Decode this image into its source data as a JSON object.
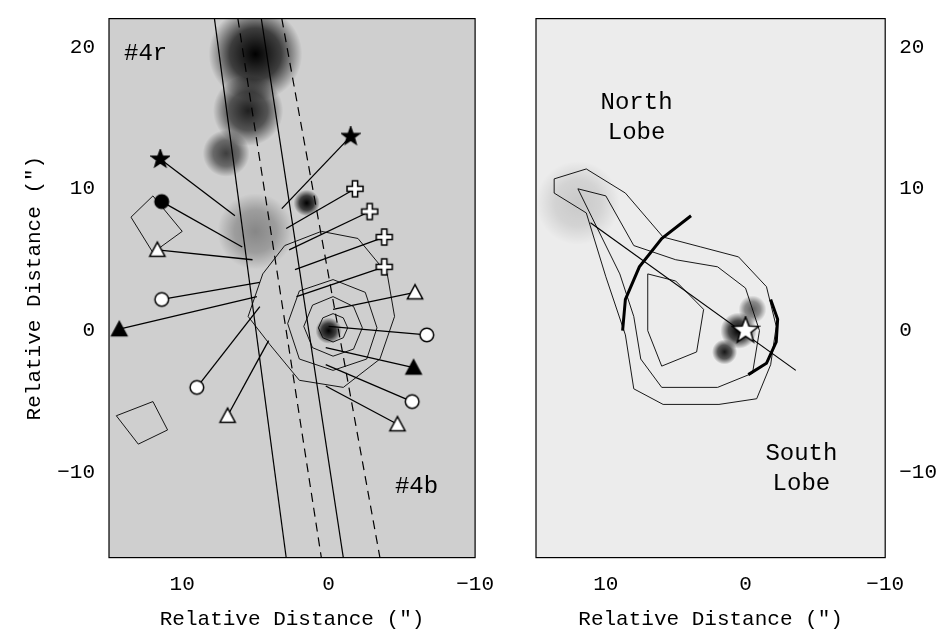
{
  "chart_data": [
    {
      "type": "scatter",
      "x_label": "Relative Distance (″)",
      "y_label": "Relative Distance (″)",
      "xlim": [
        15,
        -10
      ],
      "ylim": [
        -16,
        22
      ],
      "xticks": [
        10,
        0,
        {
          "value": -10,
          "label": "−10"
        }
      ],
      "yticks": [
        {
          "value": -10,
          "label": "−10"
        },
        0,
        10,
        20
      ],
      "grid": false,
      "blobs": [
        {
          "x": 5,
          "y": 19.5,
          "size": 3.2,
          "level": 1
        },
        {
          "x": 5.5,
          "y": 15.5,
          "size": 2.4,
          "level": 0.85
        },
        {
          "x": 7,
          "y": 12.5,
          "size": 1.6,
          "level": 0.7
        },
        {
          "x": 5,
          "y": 7,
          "size": 2.6,
          "level": 0.35
        },
        {
          "x": 1.5,
          "y": 9,
          "size": 0.9,
          "level": 1
        },
        {
          "x": 0,
          "y": 0,
          "size": 0.9,
          "level": 1
        }
      ],
      "contours": [
        [
          [
            0.7,
            0.2
          ],
          [
            0.4,
            0.9
          ],
          [
            -0.3,
            1.2
          ],
          [
            -1,
            0.9
          ],
          [
            -1.3,
            0.2
          ],
          [
            -1,
            -0.5
          ],
          [
            -0.3,
            -0.8
          ],
          [
            0.4,
            -0.5
          ],
          [
            0.7,
            0.2
          ]
        ],
        [
          [
            1.7,
            0.3
          ],
          [
            1.1,
            1.8
          ],
          [
            -0.3,
            2.4
          ],
          [
            -1.7,
            1.7
          ],
          [
            -2.3,
            0.2
          ],
          [
            -1.7,
            -1.3
          ],
          [
            -0.3,
            -1.8
          ],
          [
            1.1,
            -1.2
          ],
          [
            1.7,
            0.3
          ]
        ],
        [
          [
            2.8,
            0.5
          ],
          [
            2,
            2.8
          ],
          [
            -0.3,
            3.6
          ],
          [
            -2.5,
            2.7
          ],
          [
            -3.3,
            0.2
          ],
          [
            -2.6,
            -2
          ],
          [
            -0.3,
            -2.8
          ],
          [
            2,
            -2
          ],
          [
            2.8,
            0.5
          ]
        ],
        [
          [
            4.5,
            4
          ],
          [
            3,
            6
          ],
          [
            0.5,
            7
          ],
          [
            -2,
            6.5
          ],
          [
            -4,
            4
          ],
          [
            -4.5,
            1
          ],
          [
            -3.5,
            -2
          ],
          [
            -1,
            -4
          ],
          [
            2,
            -3.5
          ],
          [
            4,
            -1
          ],
          [
            5.5,
            1
          ],
          [
            4.5,
            4
          ]
        ],
        [
          [
            10,
            7
          ],
          [
            12,
            9.5
          ],
          [
            13.5,
            8
          ],
          [
            12,
            5.5
          ],
          [
            10,
            7
          ]
        ],
        [
          [
            14.5,
            -6
          ],
          [
            12,
            -5
          ],
          [
            11,
            -7
          ],
          [
            13,
            -8
          ],
          [
            14.5,
            -6
          ]
        ]
      ],
      "axis_lines": [
        {
          "line_style": "solid",
          "points": [
            [
              7.8,
              22
            ],
            [
              2.9,
              -16
            ]
          ]
        },
        {
          "line_style": "solid",
          "points": [
            [
              4.6,
              22
            ],
            [
              -1,
              -16
            ]
          ]
        },
        {
          "line_style": "dashed",
          "points": [
            [
              6.2,
              22
            ],
            [
              0.5,
              -16
            ]
          ]
        },
        {
          "line_style": "dashed",
          "points": [
            [
              3.2,
              22
            ],
            [
              -3.5,
              -16
            ]
          ]
        }
      ],
      "markers": [
        {
          "marker": "filled_star",
          "x": 11.5,
          "y": 12.1,
          "to": [
            6.4,
            8.1
          ]
        },
        {
          "marker": "filled_star",
          "x": -1.5,
          "y": 13.7,
          "to": [
            3.2,
            8.6
          ]
        },
        {
          "marker": "filled_circle",
          "x": 11.4,
          "y": 9.1,
          "to": [
            5.9,
            5.9
          ]
        },
        {
          "marker": "open_cross",
          "x": -1.8,
          "y": 10,
          "to": [
            2.9,
            7.2
          ]
        },
        {
          "marker": "open_cross",
          "x": -2.8,
          "y": 8.4,
          "to": [
            2.7,
            5.7
          ]
        },
        {
          "marker": "open_cross",
          "x": -3.8,
          "y": 6.6,
          "to": [
            2.3,
            4.3
          ]
        },
        {
          "marker": "open_cross",
          "x": -3.8,
          "y": 4.5,
          "to": [
            2.2,
            2.4
          ]
        },
        {
          "marker": "open_triangle",
          "x": 11.7,
          "y": 5.7,
          "to": [
            5.2,
            5
          ]
        },
        {
          "marker": "open_triangle",
          "x": -5.9,
          "y": 2.7,
          "to": [
            -0.3,
            1.5
          ]
        },
        {
          "marker": "open_circle",
          "x": 11.4,
          "y": 2.2,
          "to": [
            4.7,
            3.4
          ]
        },
        {
          "marker": "filled_triangle",
          "x": 14.3,
          "y": 0.1,
          "to": [
            4.9,
            2.4
          ]
        },
        {
          "marker": "open_circle",
          "x": 9,
          "y": -4,
          "to": [
            4.7,
            1.7
          ]
        },
        {
          "marker": "open_triangle",
          "x": 6.9,
          "y": -6,
          "to": [
            4.1,
            -0.7
          ]
        },
        {
          "marker": "open_circle",
          "x": -6.7,
          "y": -0.3,
          "to": [
            0,
            0.3
          ]
        },
        {
          "marker": "filled_triangle",
          "x": -5.8,
          "y": -2.6,
          "to": [
            0.2,
            -1.2
          ]
        },
        {
          "marker": "open_circle",
          "x": -5.7,
          "y": -5,
          "to": [
            0.2,
            -2.4
          ]
        },
        {
          "marker": "open_triangle",
          "x": -4.7,
          "y": -6.6,
          "to": [
            0.2,
            -3.9
          ]
        }
      ],
      "annotations": [
        {
          "text": "#4r",
          "x": 12.5,
          "y": 19.5
        },
        {
          "text": "#4b",
          "x": -6,
          "y": -11
        }
      ]
    },
    {
      "type": "scatter",
      "x_label": "Relative Distance (″)",
      "xlim": [
        15,
        -10
      ],
      "ylim": [
        -16,
        22
      ],
      "xticks": [
        10,
        0,
        {
          "value": -10,
          "label": "−10"
        }
      ],
      "yticks": [
        {
          "value": -10,
          "label": "−10"
        },
        0,
        10,
        20
      ],
      "grid": false,
      "blobs": [
        {
          "x": 0.5,
          "y": 0,
          "size": 1.3,
          "level": 1
        },
        {
          "x": 1.5,
          "y": -1.5,
          "size": 0.9,
          "level": 0.9
        },
        {
          "x": -0.5,
          "y": 1.5,
          "size": 1,
          "level": 0.6
        },
        {
          "x": 12,
          "y": 9,
          "size": 3,
          "level": 0.15
        }
      ],
      "contours": [
        [
          [
            13.7,
            10.7
          ],
          [
            11.4,
            11.4
          ],
          [
            8.6,
            9.7
          ],
          [
            5.9,
            6.6
          ],
          [
            3.2,
            5.9
          ],
          [
            0.5,
            5.2
          ],
          [
            -1.5,
            3.1
          ],
          [
            -2.2,
            0.3
          ],
          [
            -1.8,
            -2.4
          ],
          [
            -0.8,
            -4.8
          ],
          [
            1.9,
            -5.2
          ],
          [
            5.9,
            -5.2
          ],
          [
            8,
            -4.1
          ],
          [
            8.6,
            -0.3
          ],
          [
            10,
            3.8
          ],
          [
            11.4,
            8.3
          ],
          [
            13.7,
            9.7
          ],
          [
            13.7,
            10.7
          ]
        ],
        [
          [
            12,
            10
          ],
          [
            10,
            9.5
          ],
          [
            8,
            6
          ],
          [
            5,
            5
          ],
          [
            2,
            4.5
          ],
          [
            0,
            3
          ],
          [
            -1,
            0
          ],
          [
            -0.5,
            -3
          ],
          [
            2,
            -4
          ],
          [
            6,
            -4
          ],
          [
            7.5,
            -2
          ],
          [
            8,
            1
          ],
          [
            9,
            4
          ],
          [
            11,
            8
          ],
          [
            12,
            10
          ]
        ],
        [
          [
            7,
            4
          ],
          [
            5,
            3.5
          ],
          [
            3,
            1.5
          ],
          [
            3.5,
            -1.5
          ],
          [
            6,
            -2.5
          ],
          [
            7,
            0
          ],
          [
            7,
            4
          ]
        ]
      ],
      "axis_lines": [
        {
          "line_style": "solid",
          "points": [
            [
              11.1,
              7.6
            ],
            [
              -3.6,
              -2.8
            ]
          ]
        },
        {
          "line_style": "thick",
          "points": [
            [
              3.9,
              8.1
            ],
            [
              6,
              6.5
            ],
            [
              7.6,
              4.5
            ],
            [
              8.6,
              2.2
            ],
            [
              8.8,
              0
            ]
          ]
        },
        {
          "line_style": "thick",
          "points": [
            [
              -0.2,
              -3.1
            ],
            [
              -1.5,
              -2.3
            ],
            [
              -2.2,
              -0.8
            ],
            [
              -2.3,
              0.8
            ],
            [
              -1.8,
              2.2
            ]
          ]
        }
      ],
      "markers": [
        {
          "marker": "open_star",
          "x": 0,
          "y": 0
        }
      ],
      "annotations": [
        {
          "text": "North Lobe",
          "x": 7.8,
          "y": 15
        },
        {
          "text": "South Lobe",
          "x": -4,
          "y": -9.7
        }
      ]
    }
  ]
}
